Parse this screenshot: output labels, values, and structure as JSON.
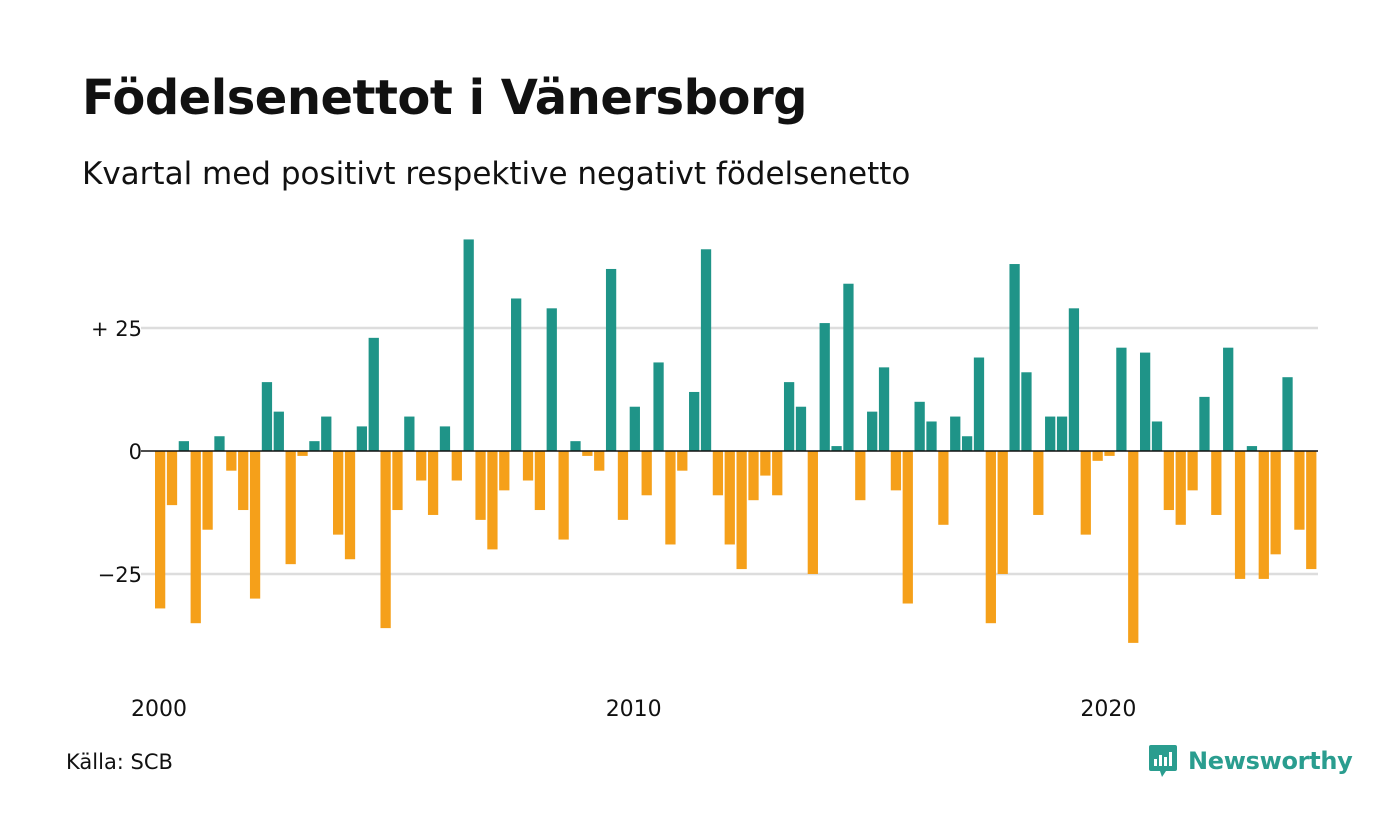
{
  "title": "Födelsenettot i Vänersborg",
  "subtitle": "Kvartal med positivt respektive negativt födelsenetto",
  "source": "Källa: SCB",
  "brand": {
    "name": "Newsworthy",
    "icon": "newsworthy-logo-icon",
    "color": "#2a9d8f"
  },
  "colors": {
    "positive": "#1f9488",
    "negative": "#f5a01a",
    "grid": "#dddddd",
    "zero": "#111111"
  },
  "chart_data": {
    "type": "bar",
    "x_start": "2000 Q1",
    "x_ticks": [
      {
        "label": "2000",
        "index": 0
      },
      {
        "label": "2010",
        "index": 40
      },
      {
        "label": "2020",
        "index": 80
      }
    ],
    "y_ticks": [
      {
        "label": "+ 25",
        "value": 25
      },
      {
        "label": "0",
        "value": 0
      },
      {
        "label": "−25",
        "value": -25
      }
    ],
    "ylim": [
      -45,
      45
    ],
    "grid": true,
    "values": [
      -32,
      -11,
      2,
      -35,
      -16,
      3,
      -4,
      -12,
      -30,
      14,
      8,
      -23,
      -1,
      2,
      7,
      -17,
      -22,
      5,
      23,
      -36,
      -12,
      7,
      -6,
      -13,
      5,
      -6,
      43,
      -14,
      -20,
      -8,
      31,
      -6,
      -12,
      29,
      -18,
      2,
      -1,
      -4,
      37,
      -14,
      9,
      -9,
      18,
      -19,
      -4,
      12,
      41,
      -9,
      -19,
      -24,
      -10,
      -5,
      -9,
      14,
      9,
      -25,
      26,
      1,
      34,
      -10,
      8,
      17,
      -8,
      -31,
      10,
      6,
      -15,
      7,
      3,
      19,
      -35,
      -25,
      38,
      16,
      -13,
      7,
      7,
      29,
      -17,
      -2,
      -1,
      21,
      -39,
      20,
      6,
      -12,
      -15,
      -8,
      11,
      -13,
      21,
      -26,
      1,
      -26,
      -21,
      15,
      -16,
      -24
    ]
  }
}
